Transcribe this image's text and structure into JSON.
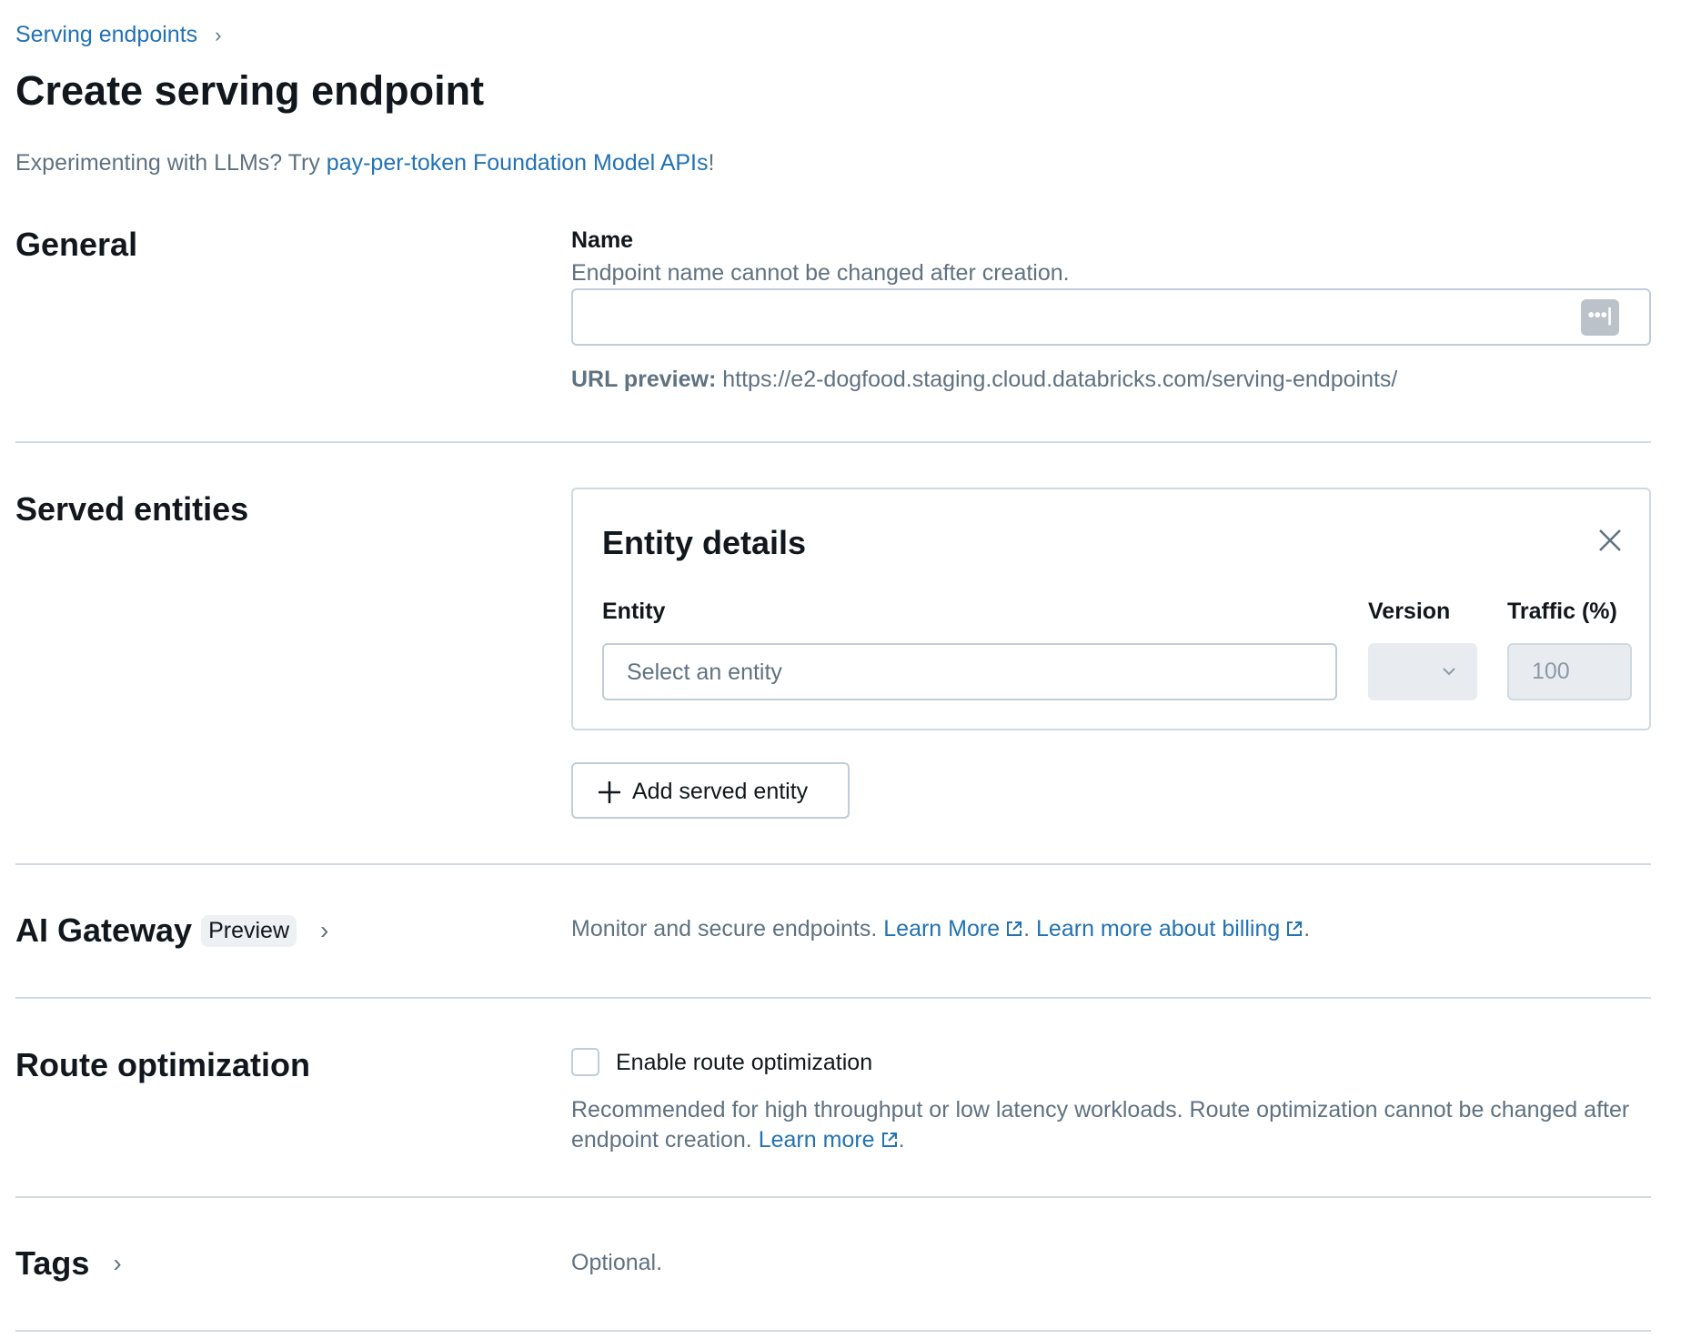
{
  "breadcrumb": {
    "parent": "Serving endpoints",
    "separator_icon": "chevron-right-icon"
  },
  "page_title": "Create serving endpoint",
  "promo": {
    "text": "Experimenting with LLMs? Try ",
    "link": "pay-per-token Foundation Model APIs",
    "suffix": "!"
  },
  "general": {
    "heading": "General",
    "name_label": "Name",
    "name_help": "Endpoint name cannot be changed after creation.",
    "name_value": "",
    "url_preview_label": "URL preview:",
    "url_preview_value": "https://e2-dogfood.staging.cloud.databricks.com/serving-endpoints/"
  },
  "served_entities": {
    "heading": "Served entities",
    "card_title": "Entity details",
    "entity_label": "Entity",
    "entity_placeholder": "Select an entity",
    "version_label": "Version",
    "traffic_label": "Traffic (%)",
    "traffic_value": "100",
    "add_button": "Add served entity"
  },
  "ai_gateway": {
    "heading": "AI Gateway",
    "badge": "Preview",
    "description": "Monitor and secure endpoints. ",
    "learn_more": "Learn More",
    "sep": ". ",
    "billing_link": "Learn more about billing",
    "end": "."
  },
  "route_optimization": {
    "heading": "Route optimization",
    "checkbox_label": "Enable route optimization",
    "checked": false,
    "description": "Recommended for high throughput or low latency workloads. Route optimization cannot be changed after endpoint creation. ",
    "learn_more": "Learn more",
    "end": "."
  },
  "tags": {
    "heading": "Tags",
    "description": "Optional."
  },
  "colors": {
    "link": "#2272b4",
    "text": "#11171c",
    "muted": "#5f7281",
    "border": "#c0cdd8"
  }
}
